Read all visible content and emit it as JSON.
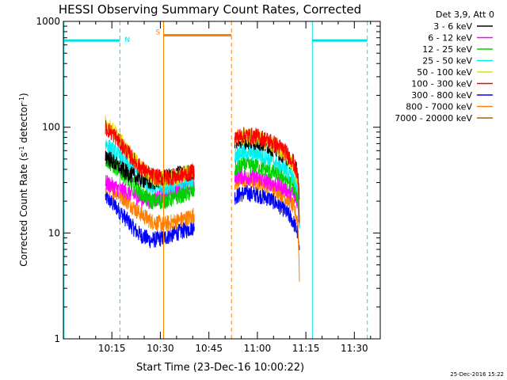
{
  "chart_data": {
    "type": "line",
    "title": "HESSI Observing Summary Count Rates, Corrected",
    "xlabel": "Start Time (23-Dec-16 10:00:22)",
    "ylabel_main": "Corrected Count Rate (s",
    "ylabel_sup1": "-1",
    "ylabel_mid": " detector",
    "ylabel_sup2": "-1",
    "ylabel_end": ")",
    "yscale": "log",
    "ylim": [
      1,
      1000
    ],
    "xlim_minutes": [
      0,
      98
    ],
    "x_ticks": [
      {
        "t": 15,
        "label": "10:15"
      },
      {
        "t": 30,
        "label": "10:30"
      },
      {
        "t": 45,
        "label": "10:45"
      },
      {
        "t": 60,
        "label": "11:00"
      },
      {
        "t": 75,
        "label": "11:15"
      },
      {
        "t": 90,
        "label": "11:30"
      }
    ],
    "y_ticks": [
      {
        "v": 1,
        "label": "1"
      },
      {
        "v": 10,
        "label": "10"
      },
      {
        "v": 100,
        "label": "100"
      },
      {
        "v": 1000,
        "label": "1000"
      }
    ],
    "legend_header": "Det 3,9, Att 0",
    "legend_position": "right",
    "series": [
      {
        "name": "3 - 6 keV",
        "color": "#000000",
        "seg1": [
          [
            13,
            55
          ],
          [
            16,
            45
          ],
          [
            19,
            38
          ],
          [
            23,
            33
          ],
          [
            27,
            30
          ],
          [
            31,
            33
          ],
          [
            35,
            36
          ],
          [
            39,
            37
          ],
          [
            40.5,
            38
          ]
        ],
        "seg2": [
          [
            53,
            75
          ],
          [
            56,
            74
          ],
          [
            60,
            72
          ],
          [
            64,
            65
          ],
          [
            68,
            55
          ],
          [
            71,
            45
          ],
          [
            72.5,
            38
          ],
          [
            73,
            18
          ]
        ]
      },
      {
        "name": "6 - 12 keV",
        "color": "#ff00ff",
        "seg1": [
          [
            13,
            30
          ],
          [
            16,
            27
          ],
          [
            19,
            25
          ],
          [
            23,
            22
          ],
          [
            27,
            20
          ],
          [
            31,
            23
          ],
          [
            35,
            25
          ],
          [
            39,
            27
          ],
          [
            40.5,
            28
          ]
        ],
        "seg2": [
          [
            53,
            35
          ],
          [
            56,
            34
          ],
          [
            60,
            33
          ],
          [
            64,
            30
          ],
          [
            68,
            27
          ],
          [
            71,
            23
          ],
          [
            72.5,
            20
          ],
          [
            73,
            12
          ]
        ]
      },
      {
        "name": "12 - 25 keV",
        "color": "#00d000",
        "seg1": [
          [
            13,
            50
          ],
          [
            16,
            42
          ],
          [
            19,
            35
          ],
          [
            23,
            25
          ],
          [
            27,
            20
          ],
          [
            31,
            20
          ],
          [
            35,
            22
          ],
          [
            39,
            24
          ],
          [
            40.5,
            25
          ]
        ],
        "seg2": [
          [
            53,
            40
          ],
          [
            56,
            44
          ],
          [
            60,
            43
          ],
          [
            64,
            38
          ],
          [
            68,
            34
          ],
          [
            71,
            28
          ],
          [
            72.5,
            22
          ],
          [
            73,
            12
          ]
        ]
      },
      {
        "name": "25 - 50 keV",
        "color": "#00f0f0",
        "seg1": [
          [
            13,
            70
          ],
          [
            16,
            58
          ],
          [
            19,
            48
          ],
          [
            23,
            36
          ],
          [
            27,
            28
          ],
          [
            31,
            27
          ],
          [
            35,
            29
          ],
          [
            39,
            32
          ],
          [
            40.5,
            33
          ]
        ],
        "seg2": [
          [
            53,
            55
          ],
          [
            56,
            58
          ],
          [
            60,
            57
          ],
          [
            64,
            50
          ],
          [
            68,
            42
          ],
          [
            71,
            34
          ],
          [
            72.5,
            26
          ],
          [
            73,
            12
          ]
        ]
      },
      {
        "name": "50 - 100 keV",
        "color": "#e0e000",
        "seg1": [
          [
            13,
            110
          ],
          [
            16,
            88
          ],
          [
            19,
            65
          ],
          [
            23,
            45
          ],
          [
            27,
            34
          ],
          [
            31,
            32
          ],
          [
            35,
            34
          ],
          [
            39,
            38
          ],
          [
            40.5,
            40
          ]
        ],
        "seg2": [
          [
            53,
            80
          ],
          [
            56,
            82
          ],
          [
            60,
            80
          ],
          [
            64,
            70
          ],
          [
            68,
            58
          ],
          [
            71,
            45
          ],
          [
            72.5,
            32
          ],
          [
            73,
            14
          ]
        ]
      },
      {
        "name": "100 - 300 keV",
        "color": "#ff0000",
        "seg1": [
          [
            13,
            100
          ],
          [
            16,
            82
          ],
          [
            19,
            62
          ],
          [
            23,
            44
          ],
          [
            27,
            35
          ],
          [
            31,
            33
          ],
          [
            35,
            34
          ],
          [
            39,
            37
          ],
          [
            40.5,
            38
          ]
        ],
        "seg2": [
          [
            53,
            80
          ],
          [
            56,
            84
          ],
          [
            60,
            82
          ],
          [
            64,
            74
          ],
          [
            68,
            62
          ],
          [
            71,
            48
          ],
          [
            72.5,
            34
          ],
          [
            73,
            15
          ]
        ]
      },
      {
        "name": "300 - 800 keV",
        "color": "#0000ff",
        "seg1": [
          [
            13,
            22
          ],
          [
            16,
            18
          ],
          [
            19,
            14
          ],
          [
            23,
            10
          ],
          [
            27,
            8.5
          ],
          [
            31,
            9
          ],
          [
            35,
            10
          ],
          [
            39,
            11
          ],
          [
            40.5,
            11.5
          ]
        ],
        "seg2": [
          [
            53,
            22
          ],
          [
            56,
            24
          ],
          [
            60,
            23
          ],
          [
            64,
            21
          ],
          [
            68,
            17
          ],
          [
            71,
            13
          ],
          [
            72.5,
            10
          ],
          [
            73,
            6
          ]
        ]
      },
      {
        "name": "800 - 7000 keV",
        "color": "#ff8000",
        "seg1": [
          [
            13,
            28
          ],
          [
            16,
            25
          ],
          [
            19,
            21
          ],
          [
            23,
            16
          ],
          [
            27,
            13
          ],
          [
            31,
            12
          ],
          [
            35,
            13
          ],
          [
            39,
            14
          ],
          [
            40.5,
            15
          ]
        ],
        "seg2": [
          [
            53,
            30
          ],
          [
            56,
            32
          ],
          [
            60,
            31
          ],
          [
            64,
            28
          ],
          [
            68,
            23
          ],
          [
            71,
            18
          ],
          [
            72.5,
            13
          ],
          [
            73,
            4
          ]
        ]
      },
      {
        "name": "7000 - 20000 keV",
        "color": "#a06000",
        "seg1": [],
        "seg2": []
      }
    ],
    "flags": [
      {
        "label": "N",
        "color": "#00e0e0",
        "level": 660,
        "x_start": 0,
        "x_end": 17.5
      },
      {
        "label": "S",
        "color": "#ff7f00",
        "level": 740,
        "x_start": 31,
        "x_end": 52
      },
      {
        "label": "",
        "color": "#00e0e0",
        "level": 660,
        "x_start": 77,
        "x_end": 94
      }
    ],
    "vlines": [
      {
        "t": 0.2,
        "color": "#00e0e0",
        "dashed": false
      },
      {
        "t": 17.5,
        "color": "#00e0e0",
        "dashed": true
      },
      {
        "t": 31,
        "color": "#ff7f00",
        "dashed": false
      },
      {
        "t": 52,
        "color": "#ff7f00",
        "dashed": true
      },
      {
        "t": 77,
        "color": "#00e0e0",
        "dashed": false
      },
      {
        "t": 94,
        "color": "#00e0e0",
        "dashed": true
      }
    ],
    "timestamp": "25-Dec-2016 15:22"
  }
}
